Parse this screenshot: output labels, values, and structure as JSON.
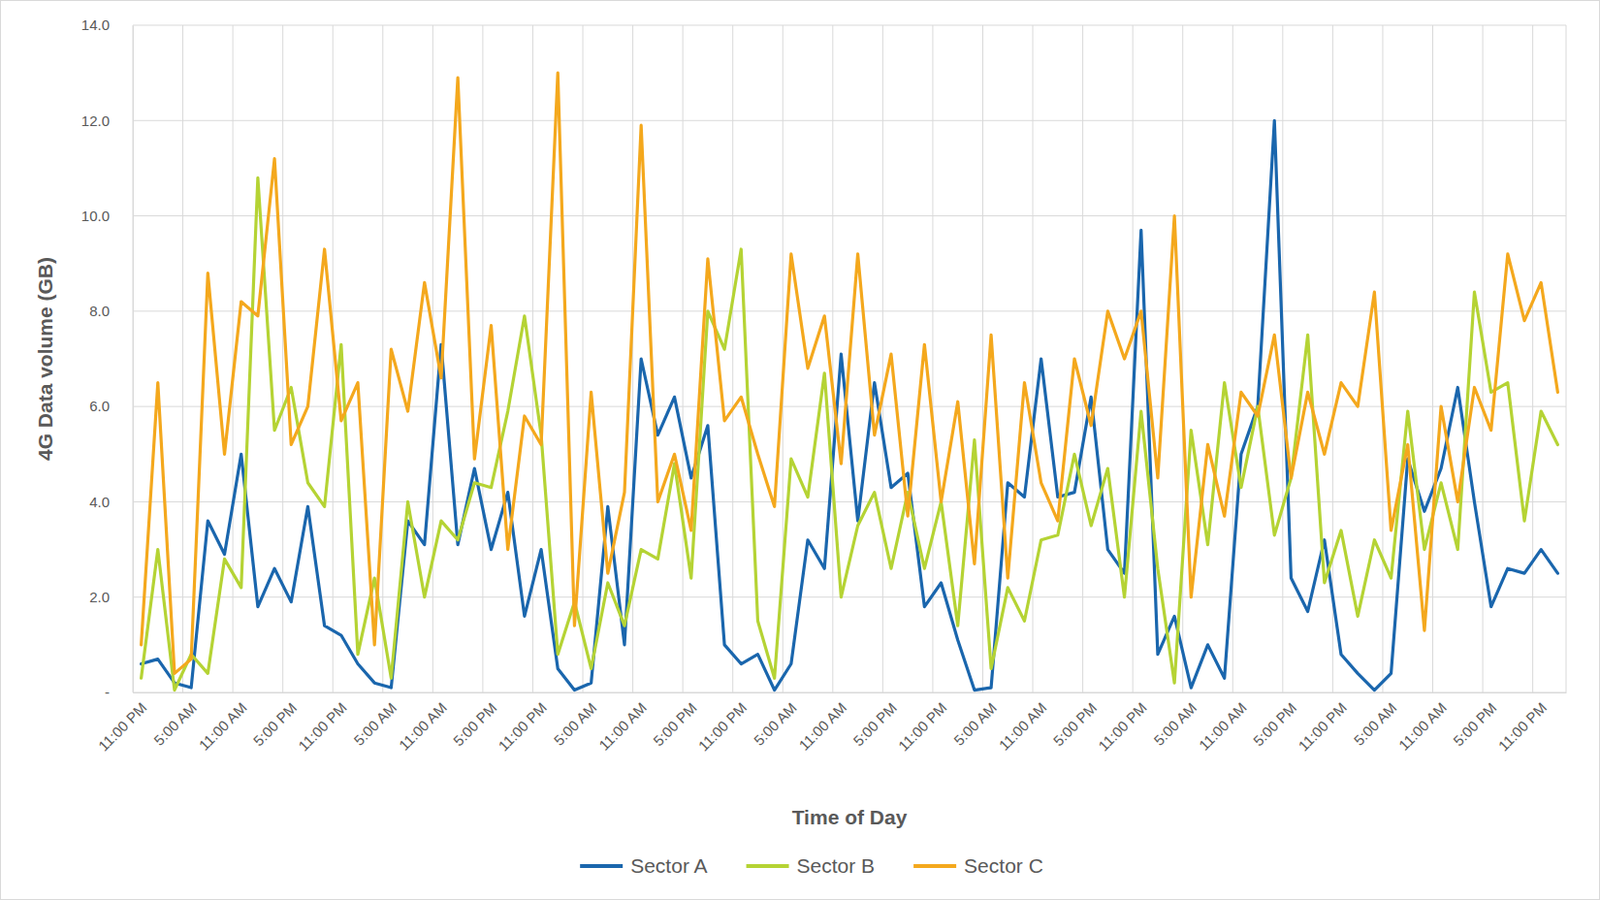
{
  "chart_data": {
    "type": "line",
    "x_label": "Time of Day",
    "y_label": "4G Data volume (GB)",
    "categories": [
      "11:00 PM",
      null,
      null,
      "5:00 AM",
      null,
      null,
      "11:00 AM",
      null,
      null,
      "5:00 PM",
      null,
      null,
      "11:00 PM",
      null,
      null,
      "5:00 AM",
      null,
      null,
      "11:00 AM",
      null,
      null,
      "5:00 PM",
      null,
      null,
      "11:00 PM",
      null,
      null,
      "5:00 AM",
      null,
      null,
      "11:00 AM",
      null,
      null,
      "5:00 PM",
      null,
      null,
      "11:00 PM",
      null,
      null,
      "5:00 AM",
      null,
      null,
      "11:00 AM",
      null,
      null,
      "5:00 PM",
      null,
      null,
      "11:00 PM",
      null,
      null,
      "5:00 AM",
      null,
      null,
      "11:00 AM",
      null,
      null,
      "5:00 PM",
      null,
      null,
      "11:00 PM",
      null,
      null,
      "5:00 AM",
      null,
      null,
      "11:00 AM",
      null,
      null,
      "5:00 PM",
      null,
      null,
      "11:00 PM",
      null,
      null,
      "5:00 AM",
      null,
      null,
      "11:00 AM",
      null,
      null,
      "5:00 PM",
      null,
      null,
      "11:00 PM",
      null
    ],
    "series": [
      {
        "name": "Sector A",
        "color": "#1a66ad",
        "values": [
          0.6,
          0.7,
          0.2,
          0.1,
          3.6,
          2.9,
          5.0,
          1.8,
          2.6,
          1.9,
          3.9,
          1.4,
          1.2,
          0.6,
          0.2,
          0.1,
          3.6,
          3.1,
          7.3,
          3.1,
          4.7,
          3.0,
          4.2,
          1.6,
          3.0,
          0.5,
          0.05,
          0.2,
          3.9,
          1.0,
          7.0,
          5.4,
          6.2,
          4.5,
          5.6,
          1.0,
          0.6,
          0.8,
          0.05,
          0.6,
          3.2,
          2.6,
          7.1,
          3.6,
          6.5,
          4.3,
          4.6,
          1.8,
          2.3,
          1.1,
          0.05,
          0.1,
          4.4,
          4.1,
          7.0,
          4.1,
          4.2,
          6.2,
          3.0,
          2.5,
          9.7,
          0.8,
          1.6,
          0.1,
          1.0,
          0.3,
          5.0,
          6.0,
          12.0,
          2.4,
          1.7,
          3.2,
          0.8,
          0.4,
          0.05,
          0.4,
          4.9,
          3.8,
          4.7,
          6.4,
          4.0,
          1.8,
          2.6,
          2.5,
          3.0,
          2.5
        ]
      },
      {
        "name": "Sector B",
        "color": "#b5d334",
        "values": [
          0.3,
          3.0,
          0.05,
          0.8,
          0.4,
          2.8,
          2.2,
          10.8,
          5.5,
          6.4,
          4.4,
          3.9,
          7.3,
          0.8,
          2.4,
          0.3,
          4.0,
          2.0,
          3.6,
          3.2,
          4.4,
          4.3,
          5.9,
          7.9,
          5.4,
          0.8,
          1.9,
          0.5,
          2.3,
          1.4,
          3.0,
          2.8,
          4.8,
          2.4,
          8.0,
          7.2,
          9.3,
          1.5,
          0.3,
          4.9,
          4.1,
          6.7,
          2.0,
          3.5,
          4.2,
          2.6,
          4.2,
          2.6,
          4.0,
          1.4,
          5.3,
          0.5,
          2.2,
          1.5,
          3.2,
          3.3,
          5.0,
          3.5,
          4.7,
          2.0,
          5.9,
          2.6,
          0.2,
          5.5,
          3.1,
          6.5,
          4.3,
          6.0,
          3.3,
          4.5,
          7.5,
          2.3,
          3.4,
          1.6,
          3.2,
          2.4,
          5.9,
          3.0,
          4.4,
          3.0,
          8.4,
          6.3,
          6.5,
          3.6,
          5.9,
          5.2
        ]
      },
      {
        "name": "Sector C",
        "color": "#f4a81d",
        "values": [
          1.0,
          6.5,
          0.4,
          0.7,
          8.8,
          5.0,
          8.2,
          7.9,
          11.2,
          5.2,
          6.0,
          9.3,
          5.7,
          6.5,
          1.0,
          7.2,
          5.9,
          8.6,
          6.6,
          12.9,
          4.9,
          7.7,
          3.0,
          5.8,
          5.2,
          13.0,
          1.4,
          6.3,
          2.5,
          4.2,
          11.9,
          4.0,
          5.0,
          3.4,
          9.1,
          5.7,
          6.2,
          5.0,
          3.9,
          9.2,
          6.8,
          7.9,
          4.8,
          9.2,
          5.4,
          7.1,
          3.7,
          7.3,
          4.0,
          6.1,
          2.7,
          7.5,
          2.4,
          6.5,
          4.4,
          3.6,
          7.0,
          5.6,
          8.0,
          7.0,
          8.0,
          4.5,
          10.0,
          2.0,
          5.2,
          3.7,
          6.3,
          5.8,
          7.5,
          4.5,
          6.3,
          5.0,
          6.5,
          6.0,
          8.4,
          3.4,
          5.2,
          1.3,
          6.0,
          4.0,
          6.4,
          5.5,
          9.2,
          7.8,
          8.6,
          6.3
        ]
      }
    ],
    "ylim": [
      0,
      14
    ],
    "yticks": [
      {
        "value": 0,
        "label": "-"
      },
      {
        "value": 2,
        "label": "2.0"
      },
      {
        "value": 4,
        "label": "4.0"
      },
      {
        "value": 6,
        "label": "6.0"
      },
      {
        "value": 8,
        "label": "8.0"
      },
      {
        "value": 10,
        "label": "10.0"
      },
      {
        "value": 12,
        "label": "12.0"
      },
      {
        "value": 14,
        "label": "14.0"
      }
    ],
    "grid": true,
    "legend": "bottom"
  }
}
